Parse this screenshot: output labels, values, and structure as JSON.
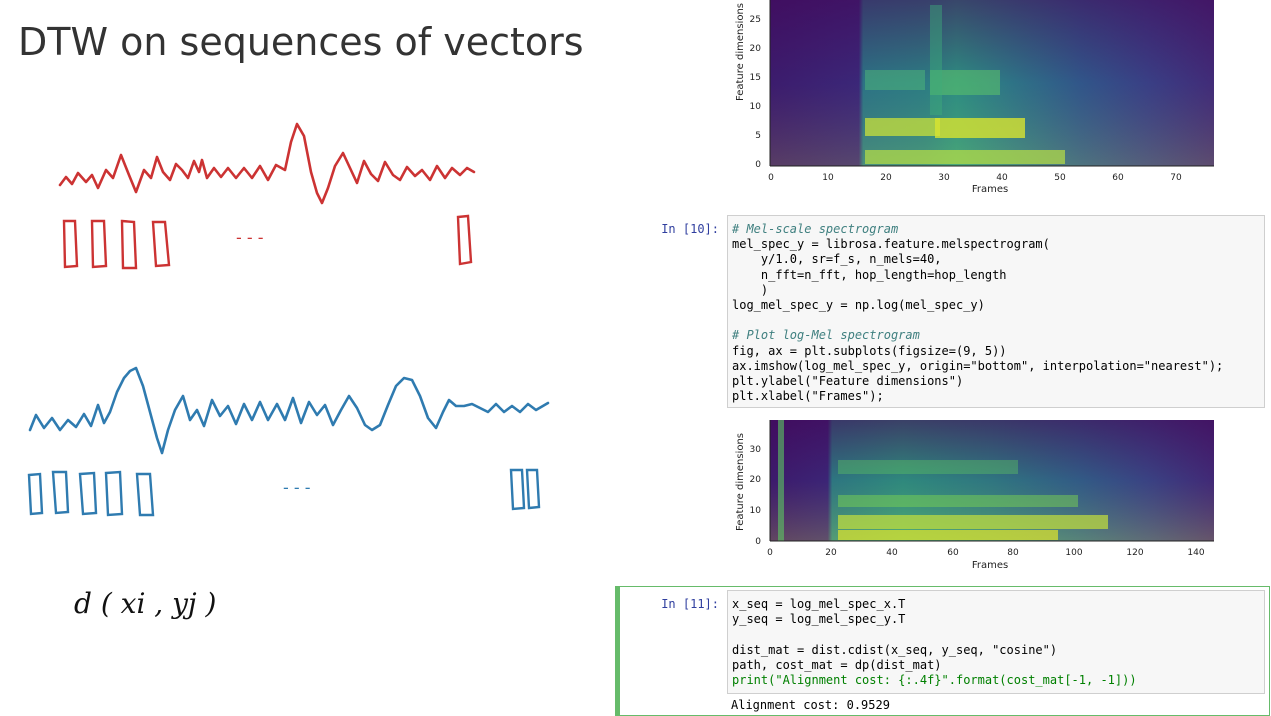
{
  "slide": {
    "title": "DTW on sequences of vectors"
  },
  "sketch": {
    "dots_top": "- - -",
    "dots_bottom": "- - -",
    "distance_label": "d ( xi , yj )",
    "colors": {
      "red": "#cc3333",
      "blue": "#2f7bb0"
    }
  },
  "spec1": {
    "ylabel": "Feature dimensions",
    "xlabel": "Frames",
    "yticks": [
      "25",
      "20",
      "15",
      "10",
      "5",
      "0"
    ],
    "xticks": [
      "0",
      "10",
      "20",
      "30",
      "40",
      "50",
      "60",
      "70"
    ]
  },
  "spec2": {
    "ylabel": "Feature dimensions",
    "xlabel": "Frames",
    "yticks": [
      "30",
      "20",
      "10",
      "0"
    ],
    "xticks": [
      "0",
      "20",
      "40",
      "60",
      "80",
      "100",
      "120",
      "140"
    ]
  },
  "cell10": {
    "prompt": "In [10]:",
    "lines": [
      "# Mel-scale spectrogram",
      "mel_spec_y = librosa.feature.melspectrogram(",
      "    y/1.0, sr=f_s, n_mels=40,",
      "    n_fft=n_fft, hop_length=hop_length",
      "    )",
      "log_mel_spec_y = np.log(mel_spec_y)",
      "",
      "# Plot log-Mel spectrogram",
      "fig, ax = plt.subplots(figsize=(9, 5))",
      "ax.imshow(log_mel_spec_y, origin=\"bottom\", interpolation=\"nearest\");",
      "plt.ylabel(\"Feature dimensions\")",
      "plt.xlabel(\"Frames\");"
    ]
  },
  "cell11": {
    "prompt": "In [11]:",
    "lines": [
      "x_seq = log_mel_spec_x.T",
      "y_seq = log_mel_spec_y.T",
      "",
      "dist_mat = dist.cdist(x_seq, y_seq, \"cosine\")",
      "path, cost_mat = dp(dist_mat)",
      "print(\"Alignment cost: {:.4f}\".format(cost_mat[-1, -1]))"
    ],
    "output": "Alignment cost: 0.9529"
  }
}
